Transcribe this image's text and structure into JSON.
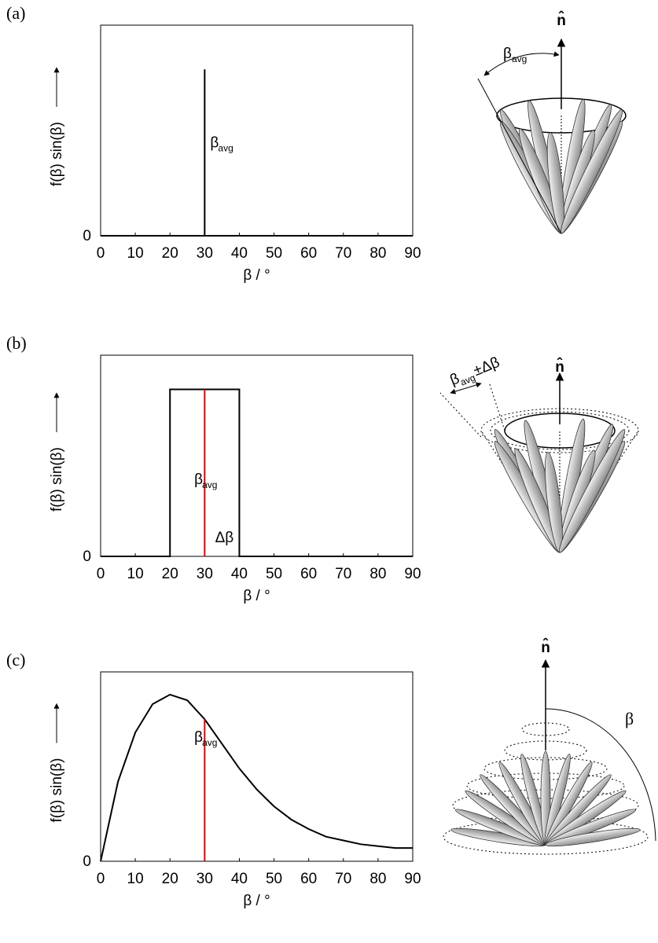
{
  "chart_data": [
    {
      "type": "line",
      "panel_label": "(a)",
      "xlabel": "β / °",
      "ylabel": "f(β) sin(β)",
      "xlim": [
        0,
        90
      ],
      "ylim": [
        0,
        1
      ],
      "xticks": [
        0,
        10,
        20,
        30,
        40,
        50,
        60,
        70,
        80,
        90
      ],
      "yticks": [
        0
      ],
      "series": [
        {
          "color": "#000000",
          "x": [
            0,
            30,
            30,
            30,
            90
          ],
          "values": [
            0,
            0,
            0.79,
            0,
            0
          ]
        }
      ],
      "annotations": [
        {
          "text": "β",
          "sub": "avg"
        }
      ],
      "diagram": {
        "normal": "n̂",
        "angle": "β",
        "angle_sub": "avg"
      }
    },
    {
      "type": "line",
      "panel_label": "(b)",
      "xlabel": "β / °",
      "ylabel": "f(β) sin(β)",
      "xlim": [
        0,
        90
      ],
      "ylim": [
        0,
        1
      ],
      "xticks": [
        0,
        10,
        20,
        30,
        40,
        50,
        60,
        70,
        80,
        90
      ],
      "yticks": [
        0
      ],
      "series": [
        {
          "color": "#000000",
          "x": [
            0,
            20,
            20,
            40,
            40,
            90
          ],
          "values": [
            0,
            0,
            0.83,
            0.83,
            0,
            0
          ]
        },
        {
          "color": "#e00000",
          "x": [
            30,
            30
          ],
          "values": [
            0,
            0.83
          ]
        }
      ],
      "annotations": [
        {
          "text": "β",
          "sub": "avg"
        },
        {
          "text": "Δβ"
        }
      ],
      "diagram": {
        "normal": "n̂",
        "angle": "β",
        "angle_sub": "avg",
        "angle_suffix": "±Δβ"
      }
    },
    {
      "type": "line",
      "panel_label": "(c)",
      "xlabel": "β / °",
      "ylabel": "f(β) sin(β)",
      "xlim": [
        0,
        90
      ],
      "ylim": [
        0,
        1
      ],
      "xticks": [
        0,
        10,
        20,
        30,
        40,
        50,
        60,
        70,
        80,
        90
      ],
      "yticks": [
        0
      ],
      "series": [
        {
          "color": "#000000",
          "x": [
            0,
            5,
            10,
            15,
            20,
            25,
            30,
            35,
            40,
            45,
            50,
            55,
            60,
            65,
            70,
            75,
            80,
            85,
            90
          ],
          "values": [
            0,
            0.42,
            0.68,
            0.83,
            0.88,
            0.85,
            0.75,
            0.62,
            0.49,
            0.38,
            0.29,
            0.22,
            0.17,
            0.13,
            0.11,
            0.09,
            0.08,
            0.07,
            0.07
          ]
        },
        {
          "color": "#e00000",
          "x": [
            30,
            30
          ],
          "values": [
            0,
            0.75
          ]
        }
      ],
      "annotations": [
        {
          "text": "β",
          "sub": "avg"
        }
      ],
      "diagram": {
        "normal": "n̂",
        "angle": "β"
      }
    }
  ]
}
